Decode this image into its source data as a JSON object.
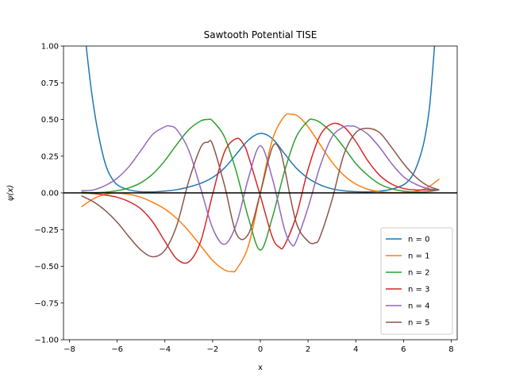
{
  "chart_data": {
    "type": "line",
    "title": "Sawtooth Potential TISE",
    "xlabel": "x",
    "ylabel": "ψ(x)",
    "xlim": [
      -8.25,
      8.25
    ],
    "ylim": [
      -1.0,
      1.0
    ],
    "xticks": [
      -8,
      -6,
      -4,
      -2,
      0,
      2,
      4,
      6,
      8
    ],
    "xtick_labels": [
      "−8",
      "−6",
      "−4",
      "−2",
      "0",
      "2",
      "4",
      "6",
      "8"
    ],
    "yticks": [
      -1.0,
      -0.75,
      -0.5,
      -0.25,
      0.0,
      0.25,
      0.5,
      0.75,
      1.0
    ],
    "ytick_labels": [
      "−1.00",
      "−0.75",
      "−0.50",
      "−0.25",
      "0.00",
      "0.25",
      "0.50",
      "0.75",
      "1.00"
    ],
    "grid": false,
    "legend_position": "lower-right",
    "baseline": 0.0,
    "series": [
      {
        "name": "n = 0",
        "color": "#1f77b4",
        "x": [
          -7.3,
          -7.1,
          -6.9,
          -6.7,
          -6.5,
          -6.3,
          -6.0,
          -5.5,
          -5.0,
          -4.5,
          -4.0,
          -3.5,
          -3.0,
          -2.5,
          -2.0,
          -1.5,
          -1.0,
          -0.5,
          0.0,
          0.5,
          1.0,
          1.5,
          2.0,
          2.5,
          3.0,
          3.5,
          4.0,
          4.5,
          5.0,
          5.5,
          6.0,
          6.3,
          6.5,
          6.7,
          6.9,
          7.1,
          7.3
        ],
        "y": [
          1.0,
          0.72,
          0.5,
          0.33,
          0.2,
          0.12,
          0.055,
          0.02,
          0.008,
          0.007,
          0.012,
          0.022,
          0.04,
          0.065,
          0.105,
          0.17,
          0.265,
          0.36,
          0.405,
          0.37,
          0.27,
          0.17,
          0.1,
          0.055,
          0.028,
          0.014,
          0.008,
          0.007,
          0.012,
          0.025,
          0.055,
          0.1,
          0.16,
          0.25,
          0.38,
          0.6,
          1.0
        ]
      },
      {
        "name": "n = 1",
        "color": "#ff7f0e",
        "x": [
          -7.5,
          -7.0,
          -6.5,
          -6.0,
          -5.5,
          -5.0,
          -4.5,
          -4.0,
          -3.5,
          -3.0,
          -2.5,
          -2.0,
          -1.5,
          -1.2,
          -1.0,
          -0.5,
          0.0,
          0.5,
          1.0,
          1.3,
          1.6,
          2.0,
          2.5,
          3.0,
          3.5,
          4.0,
          4.5,
          5.0,
          5.5,
          6.0,
          6.5,
          7.0,
          7.5
        ],
        "y": [
          -0.095,
          -0.04,
          -0.01,
          -0.002,
          -0.01,
          -0.03,
          -0.065,
          -0.11,
          -0.175,
          -0.26,
          -0.36,
          -0.46,
          -0.525,
          -0.535,
          -0.52,
          -0.36,
          0.0,
          0.36,
          0.52,
          0.535,
          0.52,
          0.45,
          0.33,
          0.21,
          0.12,
          0.06,
          0.025,
          0.008,
          0.002,
          0.003,
          0.01,
          0.035,
          0.095
        ]
      },
      {
        "name": "n = 2",
        "color": "#2ca02c",
        "x": [
          -7.5,
          -7.0,
          -6.5,
          -6.0,
          -5.5,
          -5.0,
          -4.5,
          -4.0,
          -3.5,
          -3.0,
          -2.5,
          -2.2,
          -2.0,
          -1.5,
          -1.0,
          -0.5,
          0.0,
          0.5,
          1.0,
          1.5,
          2.0,
          2.2,
          2.5,
          3.0,
          3.5,
          4.0,
          4.5,
          5.0,
          5.5,
          6.0,
          6.5,
          7.0,
          7.5
        ],
        "y": [
          0.005,
          0.002,
          0.005,
          0.015,
          0.035,
          0.07,
          0.13,
          0.22,
          0.33,
          0.43,
          0.49,
          0.5,
          0.49,
          0.38,
          0.14,
          -0.17,
          -0.39,
          -0.17,
          0.14,
          0.38,
          0.49,
          0.5,
          0.48,
          0.41,
          0.31,
          0.2,
          0.12,
          0.06,
          0.028,
          0.012,
          0.006,
          0.008,
          0.02
        ]
      },
      {
        "name": "n = 3",
        "color": "#d62728",
        "x": [
          -7.5,
          -7.0,
          -6.5,
          -6.0,
          -5.5,
          -5.0,
          -4.5,
          -4.0,
          -3.5,
          -3.0,
          -2.5,
          -2.0,
          -1.5,
          -1.0,
          -0.7,
          -0.5,
          0.0,
          0.5,
          0.8,
          1.0,
          1.5,
          2.0,
          2.5,
          3.0,
          3.5,
          4.0,
          4.5,
          5.0,
          5.5,
          6.0,
          6.5,
          7.0,
          7.5
        ],
        "y": [
          0.0,
          -0.005,
          -0.015,
          -0.03,
          -0.06,
          -0.11,
          -0.2,
          -0.33,
          -0.45,
          -0.47,
          -0.33,
          -0.01,
          0.28,
          0.37,
          0.33,
          0.25,
          -0.02,
          -0.3,
          -0.37,
          -0.36,
          -0.16,
          0.16,
          0.39,
          0.47,
          0.45,
          0.35,
          0.22,
          0.12,
          0.06,
          0.03,
          0.02,
          0.02,
          0.02
        ]
      },
      {
        "name": "n = 4",
        "color": "#9467bd",
        "x": [
          -7.5,
          -7.0,
          -6.5,
          -6.0,
          -5.5,
          -5.0,
          -4.5,
          -4.0,
          -3.8,
          -3.5,
          -3.0,
          -2.5,
          -2.0,
          -1.5,
          -1.0,
          -0.5,
          0.0,
          0.5,
          1.0,
          1.3,
          1.5,
          2.0,
          2.5,
          3.0,
          3.5,
          3.8,
          4.0,
          4.5,
          5.0,
          5.5,
          6.0,
          6.5,
          7.0,
          7.5
        ],
        "y": [
          0.015,
          0.02,
          0.05,
          0.1,
          0.18,
          0.29,
          0.4,
          0.45,
          0.455,
          0.43,
          0.29,
          0.03,
          -0.24,
          -0.35,
          -0.21,
          0.1,
          0.32,
          0.1,
          -0.24,
          -0.35,
          -0.33,
          -0.1,
          0.18,
          0.38,
          0.45,
          0.455,
          0.45,
          0.4,
          0.31,
          0.2,
          0.11,
          0.06,
          0.03,
          0.02
        ]
      },
      {
        "name": "n = 5",
        "color": "#8c564b",
        "x": [
          -7.5,
          -7.0,
          -6.5,
          -6.0,
          -5.5,
          -5.0,
          -4.5,
          -4.0,
          -3.5,
          -3.0,
          -2.5,
          -2.2,
          -2.0,
          -1.5,
          -1.0,
          -0.5,
          0.0,
          0.5,
          0.8,
          1.0,
          1.5,
          2.0,
          2.3,
          2.5,
          3.0,
          3.5,
          4.0,
          4.5,
          5.0,
          5.5,
          6.0,
          6.5,
          7.0,
          7.5
        ],
        "y": [
          -0.02,
          -0.06,
          -0.12,
          -0.2,
          -0.3,
          -0.39,
          -0.435,
          -0.39,
          -0.22,
          0.08,
          0.31,
          0.345,
          0.33,
          0.05,
          -0.28,
          -0.28,
          0.0,
          0.31,
          0.3,
          0.18,
          -0.2,
          -0.33,
          -0.34,
          -0.3,
          -0.05,
          0.26,
          0.41,
          0.44,
          0.41,
          0.31,
          0.2,
          0.11,
          0.05,
          0.02
        ]
      }
    ]
  }
}
